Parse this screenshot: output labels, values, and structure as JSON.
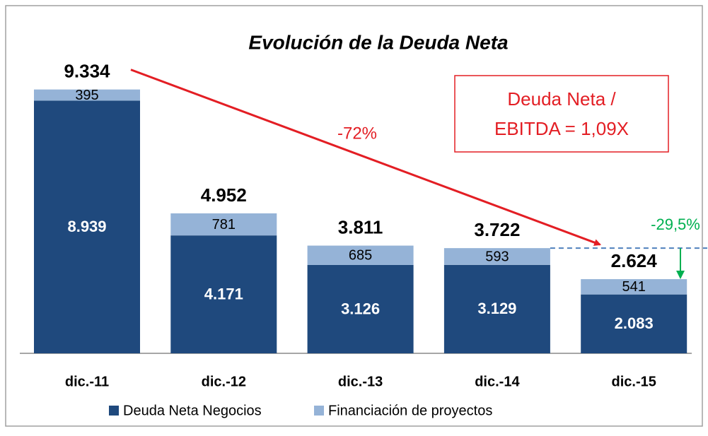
{
  "chart_data": {
    "type": "stacked_bar",
    "title": "Evolución de la Deuda Neta",
    "categories": [
      "dic.-11",
      "dic.-12",
      "dic.-13",
      "dic.-14",
      "dic.-15"
    ],
    "series": [
      {
        "name": "Deuda Neta Negocios",
        "color": "#1f497d",
        "values": [
          8939,
          4171,
          3126,
          3129,
          2083
        ],
        "value_labels": [
          "8.939",
          "4.171",
          "3.126",
          "3.129",
          "2.083"
        ]
      },
      {
        "name": "Financiación de proyectos",
        "color": "#95b3d7",
        "values": [
          395,
          781,
          685,
          593,
          541
        ]
      }
    ],
    "totals": {
      "values": [
        9334,
        4952,
        3811,
        3722,
        2624
      ],
      "value_labels": [
        "9.334",
        "4.952",
        "3.811",
        "3.722",
        "2.624"
      ]
    },
    "ylim": [
      0,
      10000
    ],
    "annotations": {
      "trend": "-72%",
      "last_change": "-29,5%",
      "ratio": [
        "Deuda Neta /",
        "EBITDA = 1,09X"
      ]
    },
    "legend": "bottom"
  }
}
